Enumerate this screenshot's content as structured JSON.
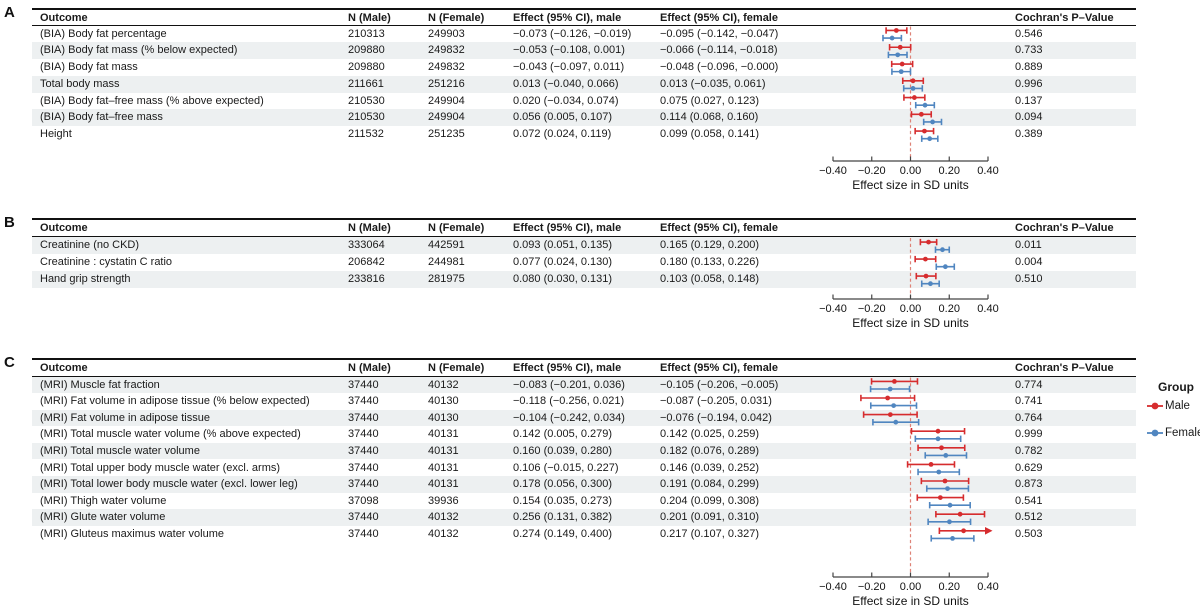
{
  "panel_labels": [
    "A",
    "B",
    "C"
  ],
  "columns": {
    "outcome": "Outcome",
    "n_male": "N (Male)",
    "n_female": "N (Female)",
    "effect_male": "Effect (95% CI), male",
    "effect_female": "Effect (95% CI), female",
    "p": "Cochran's P–Value"
  },
  "legend": {
    "title": "Group",
    "items": [
      {
        "label": "Male",
        "color": "#d62c2e"
      },
      {
        "label": "Female",
        "color": "#5086c0"
      }
    ]
  },
  "colors": {
    "male": "#d62c2e",
    "female": "#5086c0",
    "zero_line": "#de8377",
    "row_shade": "#edf0f1",
    "axis": "#444444"
  },
  "axis": {
    "tick_labels": [
      "−0.40",
      "−0.20",
      "0.00",
      "0.20",
      "0.40"
    ],
    "tick_values": [
      -0.4,
      -0.2,
      0.0,
      0.2,
      0.4
    ],
    "xlabel": "Effect size in SD units",
    "xlim": [
      -0.4,
      0.4
    ]
  },
  "chart_data": [
    {
      "type": "scatter",
      "panel": "A",
      "xlabel": "Effect size in SD units",
      "xlim": [
        -0.4,
        0.4
      ],
      "xticks": [
        -0.4,
        -0.2,
        0.0,
        0.2,
        0.4
      ],
      "series_names": [
        "Male",
        "Female"
      ],
      "rows": [
        {
          "outcome": "(BIA) Body fat percentage",
          "n_male": "210313",
          "n_female": "249903",
          "effect_male_text": "−0.073 (−0.126, −0.019)",
          "effect_female_text": "−0.095 (−0.142, −0.047)",
          "male": [
            -0.073,
            -0.126,
            -0.019
          ],
          "female": [
            -0.095,
            -0.142,
            -0.047
          ],
          "p": "0.546"
        },
        {
          "outcome": "(BIA) Body fat mass (% below expected)",
          "n_male": "209880",
          "n_female": "249832",
          "effect_male_text": "−0.053 (−0.108, 0.001)",
          "effect_female_text": "−0.066 (−0.114, −0.018)",
          "male": [
            -0.053,
            -0.108,
            0.001
          ],
          "female": [
            -0.066,
            -0.114,
            -0.018
          ],
          "p": "0.733"
        },
        {
          "outcome": "(BIA) Body fat mass",
          "n_male": "209880",
          "n_female": "249832",
          "effect_male_text": "−0.043 (−0.097, 0.011)",
          "effect_female_text": "−0.048 (−0.096, −0.000)",
          "male": [
            -0.043,
            -0.097,
            0.011
          ],
          "female": [
            -0.048,
            -0.096,
            0.0
          ],
          "p": "0.889"
        },
        {
          "outcome": "Total body mass",
          "n_male": "211661",
          "n_female": "251216",
          "effect_male_text": "0.013 (−0.040, 0.066)",
          "effect_female_text": "0.013 (−0.035, 0.061)",
          "male": [
            0.013,
            -0.04,
            0.066
          ],
          "female": [
            0.013,
            -0.035,
            0.061
          ],
          "p": "0.996"
        },
        {
          "outcome": "(BIA) Body fat–free mass (% above expected)",
          "n_male": "210530",
          "n_female": "249904",
          "effect_male_text": "0.020 (−0.034, 0.074)",
          "effect_female_text": "0.075 (0.027, 0.123)",
          "male": [
            0.02,
            -0.034,
            0.074
          ],
          "female": [
            0.075,
            0.027,
            0.123
          ],
          "p": "0.137"
        },
        {
          "outcome": "(BIA) Body fat–free mass",
          "n_male": "210530",
          "n_female": "249904",
          "effect_male_text": "0.056 (0.005, 0.107)",
          "effect_female_text": "0.114 (0.068, 0.160)",
          "male": [
            0.056,
            0.005,
            0.107
          ],
          "female": [
            0.114,
            0.068,
            0.16
          ],
          "p": "0.094"
        },
        {
          "outcome": "Height",
          "n_male": "211532",
          "n_female": "251235",
          "effect_male_text": "0.072 (0.024, 0.119)",
          "effect_female_text": "0.099 (0.058, 0.141)",
          "male": [
            0.072,
            0.024,
            0.119
          ],
          "female": [
            0.099,
            0.058,
            0.141
          ],
          "p": "0.389"
        }
      ]
    },
    {
      "type": "scatter",
      "panel": "B",
      "xlabel": "Effect size in SD units",
      "xlim": [
        -0.4,
        0.4
      ],
      "xticks": [
        -0.4,
        -0.2,
        0.0,
        0.2,
        0.4
      ],
      "series_names": [
        "Male",
        "Female"
      ],
      "rows": [
        {
          "outcome": "Creatinine (no CKD)",
          "n_male": "333064",
          "n_female": "442591",
          "effect_male_text": "0.093 (0.051, 0.135)",
          "effect_female_text": "0.165 (0.129, 0.200)",
          "male": [
            0.093,
            0.051,
            0.135
          ],
          "female": [
            0.165,
            0.129,
            0.2
          ],
          "p": "0.011"
        },
        {
          "outcome": "Creatinine : cystatin C ratio",
          "n_male": "206842",
          "n_female": "244981",
          "effect_male_text": "0.077 (0.024, 0.130)",
          "effect_female_text": "0.180 (0.133, 0.226)",
          "male": [
            0.077,
            0.024,
            0.13
          ],
          "female": [
            0.18,
            0.133,
            0.226
          ],
          "p": "0.004"
        },
        {
          "outcome": "Hand grip strength",
          "n_male": "233816",
          "n_female": "281975",
          "effect_male_text": "0.080 (0.030, 0.131)",
          "effect_female_text": "0.103 (0.058, 0.148)",
          "male": [
            0.08,
            0.03,
            0.131
          ],
          "female": [
            0.103,
            0.058,
            0.148
          ],
          "p": "0.510"
        }
      ]
    },
    {
      "type": "scatter",
      "panel": "C",
      "xlabel": "Effect size in SD units",
      "xlim": [
        -0.4,
        0.4
      ],
      "xticks": [
        -0.4,
        -0.2,
        0.0,
        0.2,
        0.4
      ],
      "series_names": [
        "Male",
        "Female"
      ],
      "rows": [
        {
          "outcome": "(MRI) Muscle fat fraction",
          "n_male": "37440",
          "n_female": "40132",
          "effect_male_text": "−0.083 (−0.201, 0.036)",
          "effect_female_text": "−0.105 (−0.206, −0.005)",
          "male": [
            -0.083,
            -0.201,
            0.036
          ],
          "female": [
            -0.105,
            -0.206,
            -0.005
          ],
          "p": "0.774"
        },
        {
          "outcome": "(MRI) Fat volume in adipose tissue (% below expected)",
          "n_male": "37440",
          "n_female": "40130",
          "effect_male_text": "−0.118 (−0.256, 0.021)",
          "effect_female_text": "−0.087 (−0.205, 0.031)",
          "male": [
            -0.118,
            -0.256,
            0.021
          ],
          "female": [
            -0.087,
            -0.205,
            0.031
          ],
          "p": "0.741"
        },
        {
          "outcome": "(MRI) Fat volume in adipose tissue",
          "n_male": "37440",
          "n_female": "40130",
          "effect_male_text": "−0.104 (−0.242, 0.034)",
          "effect_female_text": "−0.076 (−0.194, 0.042)",
          "male": [
            -0.104,
            -0.242,
            0.034
          ],
          "female": [
            -0.076,
            -0.194,
            0.042
          ],
          "p": "0.764"
        },
        {
          "outcome": "(MRI) Total muscle water volume (% above expected)",
          "n_male": "37440",
          "n_female": "40131",
          "effect_male_text": "0.142 (0.005, 0.279)",
          "effect_female_text": "0.142 (0.025, 0.259)",
          "male": [
            0.142,
            0.005,
            0.279
          ],
          "female": [
            0.142,
            0.025,
            0.259
          ],
          "p": "0.999"
        },
        {
          "outcome": "(MRI) Total muscle water volume",
          "n_male": "37440",
          "n_female": "40131",
          "effect_male_text": "0.160 (0.039, 0.280)",
          "effect_female_text": "0.182 (0.076, 0.289)",
          "male": [
            0.16,
            0.039,
            0.28
          ],
          "female": [
            0.182,
            0.076,
            0.289
          ],
          "p": "0.782"
        },
        {
          "outcome": "(MRI) Total upper body muscle water (excl. arms)",
          "n_male": "37440",
          "n_female": "40131",
          "effect_male_text": "0.106 (−0.015, 0.227)",
          "effect_female_text": "0.146 (0.039, 0.252)",
          "male": [
            0.106,
            -0.015,
            0.227
          ],
          "female": [
            0.146,
            0.039,
            0.252
          ],
          "p": "0.629"
        },
        {
          "outcome": "(MRI) Total lower body muscle water (excl. lower leg)",
          "n_male": "37440",
          "n_female": "40131",
          "effect_male_text": "0.178 (0.056, 0.300)",
          "effect_female_text": "0.191 (0.084, 0.299)",
          "male": [
            0.178,
            0.056,
            0.3
          ],
          "female": [
            0.191,
            0.084,
            0.299
          ],
          "p": "0.873"
        },
        {
          "outcome": "(MRI) Thigh water volume",
          "n_male": "37098",
          "n_female": "39936",
          "effect_male_text": "0.154 (0.035, 0.273)",
          "effect_female_text": "0.204 (0.099, 0.308)",
          "male": [
            0.154,
            0.035,
            0.273
          ],
          "female": [
            0.204,
            0.099,
            0.308
          ],
          "p": "0.541"
        },
        {
          "outcome": "(MRI) Glute water volume",
          "n_male": "37440",
          "n_female": "40132",
          "effect_male_text": "0.256 (0.131, 0.382)",
          "effect_female_text": "0.201 (0.091, 0.310)",
          "male": [
            0.256,
            0.131,
            0.382
          ],
          "female": [
            0.201,
            0.091,
            0.31
          ],
          "p": "0.512"
        },
        {
          "outcome": "(MRI) Gluteus maximus water volume",
          "n_male": "37440",
          "n_female": "40132",
          "effect_male_text": "0.274 (0.149, 0.400)",
          "effect_female_text": "0.217 (0.107, 0.327)",
          "male": [
            0.274,
            0.149,
            0.4
          ],
          "female": [
            0.217,
            0.107,
            0.327
          ],
          "male_arrow_right": true,
          "p": "0.503"
        }
      ]
    }
  ]
}
